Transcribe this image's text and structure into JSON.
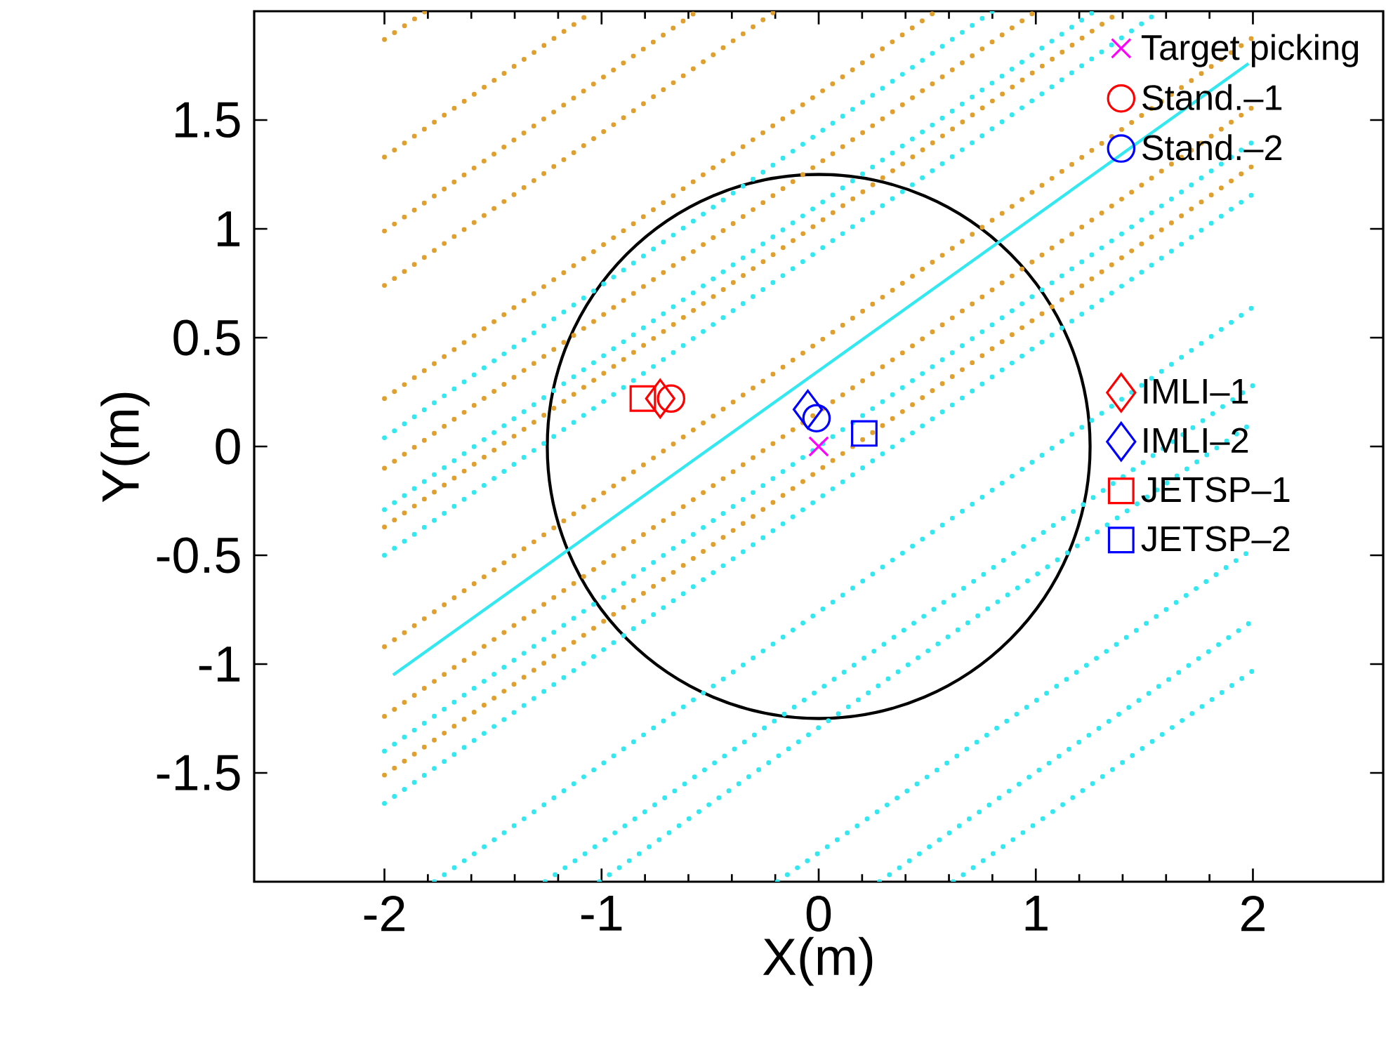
{
  "chart_data": {
    "type": "scatter",
    "xlabel": "X(m)",
    "ylabel": "Y(m)",
    "xlim": [
      -2.6,
      2.6
    ],
    "ylim": [
      -2,
      2
    ],
    "xticks": [
      -2,
      -1,
      0,
      1,
      2
    ],
    "yticks": [
      -1.5,
      -1,
      -0.5,
      0,
      0.5,
      1,
      1.5
    ],
    "legend": "top right",
    "series": [
      {
        "type": "line",
        "color": "#e0a030",
        "line_style": "dotted",
        "marker": "none",
        "x": [
          -2,
          -1.81
        ],
        "values": [
          1.87,
          2
        ]
      },
      {
        "type": "line",
        "color": "#e0a030",
        "line_style": "dotted",
        "marker": "none",
        "x": [
          -2,
          -1.04
        ],
        "values": [
          1.33,
          2
        ]
      },
      {
        "type": "line",
        "color": "#e0a030",
        "line_style": "dotted",
        "marker": "none",
        "x": [
          -2,
          -0.56
        ],
        "values": [
          0.99,
          2
        ]
      },
      {
        "type": "line",
        "color": "#e0a030",
        "line_style": "dotted",
        "marker": "none",
        "x": [
          -2,
          -0.2
        ],
        "values": [
          0.74,
          2
        ]
      },
      {
        "type": "line",
        "color": "#e0a030",
        "line_style": "dotted",
        "marker": "none",
        "x": [
          -2,
          0.54
        ],
        "values": [
          0.22,
          2
        ]
      },
      {
        "type": "line",
        "color": "#e0a030",
        "line_style": "dotted",
        "marker": "none",
        "x": [
          -2,
          1.0
        ],
        "values": [
          -0.1,
          2
        ]
      },
      {
        "type": "line",
        "color": "#e0a030",
        "line_style": "dotted",
        "marker": "none",
        "x": [
          -2,
          1.39
        ],
        "values": [
          -0.37,
          2
        ]
      },
      {
        "type": "line",
        "color": "#e0a030",
        "line_style": "dotted",
        "marker": "none",
        "x": [
          -2,
          2
        ],
        "values": [
          -0.92,
          1.88
        ]
      },
      {
        "type": "line",
        "color": "#e0a030",
        "line_style": "dotted",
        "marker": "none",
        "x": [
          -2,
          2
        ],
        "values": [
          -1.24,
          1.56
        ]
      },
      {
        "type": "line",
        "color": "#e0a030",
        "line_style": "dotted",
        "marker": "none",
        "x": [
          -2,
          2
        ],
        "values": [
          -1.51,
          1.29
        ]
      },
      {
        "type": "line",
        "color": "#33e8f0",
        "line_style": "dotted",
        "marker": "none",
        "x": [
          -2,
          0.8
        ],
        "values": [
          0.04,
          2
        ]
      },
      {
        "type": "line",
        "color": "#33e8f0",
        "line_style": "dotted",
        "marker": "none",
        "x": [
          -2,
          1.27
        ],
        "values": [
          -0.29,
          2
        ]
      },
      {
        "type": "line",
        "color": "#33e8f0",
        "line_style": "dotted",
        "marker": "none",
        "x": [
          -2,
          1.57
        ],
        "values": [
          -0.5,
          2
        ]
      },
      {
        "type": "line",
        "color": "#33e8f0",
        "line_style": "solid",
        "marker": "none",
        "x": [
          -1.96,
          1.98
        ],
        "values": [
          -1.05,
          1.76
        ]
      },
      {
        "type": "line",
        "color": "#33e8f0",
        "line_style": "dotted",
        "marker": "none",
        "x": [
          -2,
          2
        ],
        "values": [
          -1.4,
          1.4
        ]
      },
      {
        "type": "line",
        "color": "#33e8f0",
        "line_style": "dotted",
        "marker": "none",
        "x": [
          -2,
          2
        ],
        "values": [
          -1.64,
          1.16
        ]
      },
      {
        "type": "line",
        "color": "#33e8f0",
        "line_style": "dotted",
        "marker": "none",
        "x": [
          -1.77,
          2
        ],
        "values": [
          -2,
          0.64
        ]
      },
      {
        "type": "line",
        "color": "#33e8f0",
        "line_style": "dotted",
        "marker": "none",
        "x": [
          -1.26,
          2
        ],
        "values": [
          -2,
          0.28
        ]
      },
      {
        "type": "line",
        "color": "#33e8f0",
        "line_style": "dotted",
        "marker": "none",
        "x": [
          -1.01,
          2
        ],
        "values": [
          -2,
          0.11
        ]
      },
      {
        "type": "line",
        "color": "#33e8f0",
        "line_style": "dotted",
        "marker": "none",
        "x": [
          -0.19,
          2
        ],
        "values": [
          -2,
          -0.47
        ]
      },
      {
        "type": "line",
        "color": "#33e8f0",
        "line_style": "dotted",
        "marker": "none",
        "x": [
          0.28,
          2
        ],
        "values": [
          -2,
          -0.8
        ]
      },
      {
        "type": "line",
        "color": "#33e8f0",
        "line_style": "dotted",
        "marker": "none",
        "x": [
          0.62,
          2
        ],
        "values": [
          -2,
          -1.03
        ]
      },
      {
        "name": "Target picking",
        "color": "#ff00ff",
        "marker": "cross",
        "x": [
          0
        ],
        "values": [
          0
        ]
      },
      {
        "name": "Stand.–1",
        "color": "#ff0000",
        "marker": "circle",
        "x": [
          -0.68
        ],
        "values": [
          0.22
        ]
      },
      {
        "name": "Stand.–2",
        "color": "#0000ff",
        "marker": "circle",
        "x": [
          -0.01
        ],
        "values": [
          0.13
        ]
      },
      {
        "name": "IMLI–1",
        "color": "#ff0000",
        "marker": "diamond",
        "x": [
          -0.73
        ],
        "values": [
          0.22
        ]
      },
      {
        "name": "IMLI–2",
        "color": "#0000ff",
        "marker": "diamond",
        "x": [
          -0.05
        ],
        "values": [
          0.17
        ]
      },
      {
        "name": "JETSP–1",
        "color": "#ff0000",
        "marker": "square",
        "x": [
          -0.81
        ],
        "values": [
          0.22
        ]
      },
      {
        "name": "JETSP–2",
        "color": "#0000ff",
        "marker": "square",
        "x": [
          0.21
        ],
        "values": [
          0.06
        ]
      }
    ]
  }
}
